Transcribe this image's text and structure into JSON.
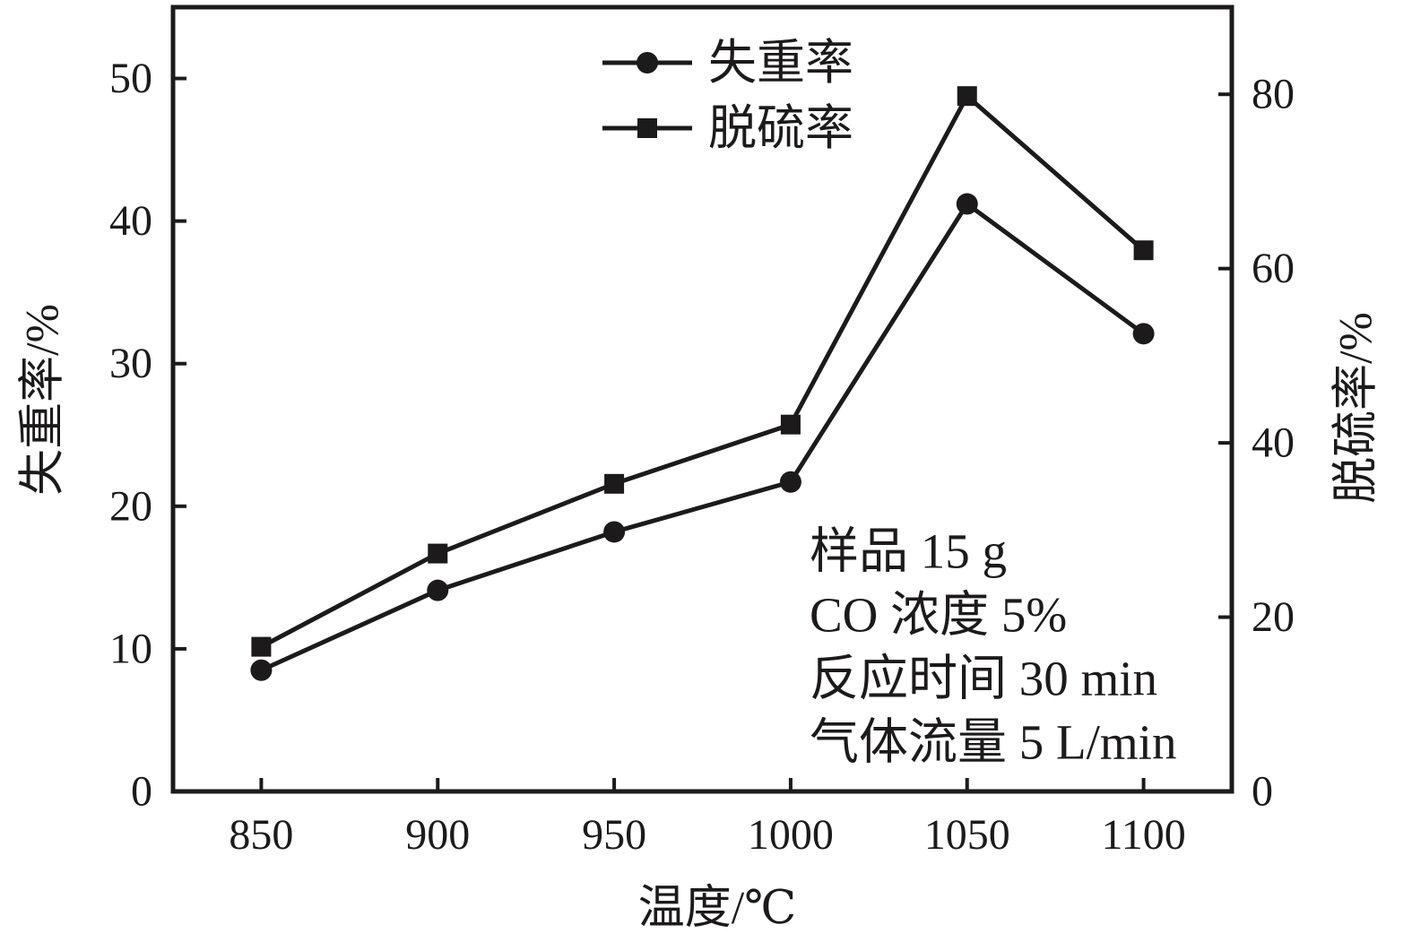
{
  "chart_data": {
    "type": "line",
    "title": "",
    "xlabel": "温度/℃",
    "x": [
      850,
      900,
      950,
      1000,
      1050,
      1100
    ],
    "xticks": [
      850,
      900,
      950,
      1000,
      1050,
      1100
    ],
    "xlim": [
      825,
      1125
    ],
    "left_axis": {
      "label": "失重率/%",
      "lim": [
        0,
        55
      ],
      "ticks": [
        0,
        10,
        20,
        30,
        40,
        50
      ]
    },
    "right_axis": {
      "label": "脱硫率/%",
      "lim": [
        0,
        90
      ],
      "ticks": [
        0,
        20,
        40,
        60,
        80
      ]
    },
    "series": [
      {
        "name": "失重率",
        "axis": "left",
        "marker": "circle",
        "values": [
          8.5,
          14.1,
          18.2,
          21.7,
          41.2,
          32.1
        ]
      },
      {
        "name": "脱硫率",
        "axis": "right",
        "marker": "square",
        "values": [
          16.6,
          27.3,
          35.3,
          42.1,
          79.8,
          62.1
        ]
      }
    ],
    "legend": {
      "position": "top-center-inside",
      "entries": [
        "失重率",
        "脱硫率"
      ]
    },
    "annotation": {
      "lines": [
        "样品 15 g",
        "CO 浓度 5%",
        "反应时间 30 min",
        "气体流量 5 L/min"
      ]
    },
    "grid": false,
    "color": "#1c1a1b",
    "background": "#ffffff"
  }
}
